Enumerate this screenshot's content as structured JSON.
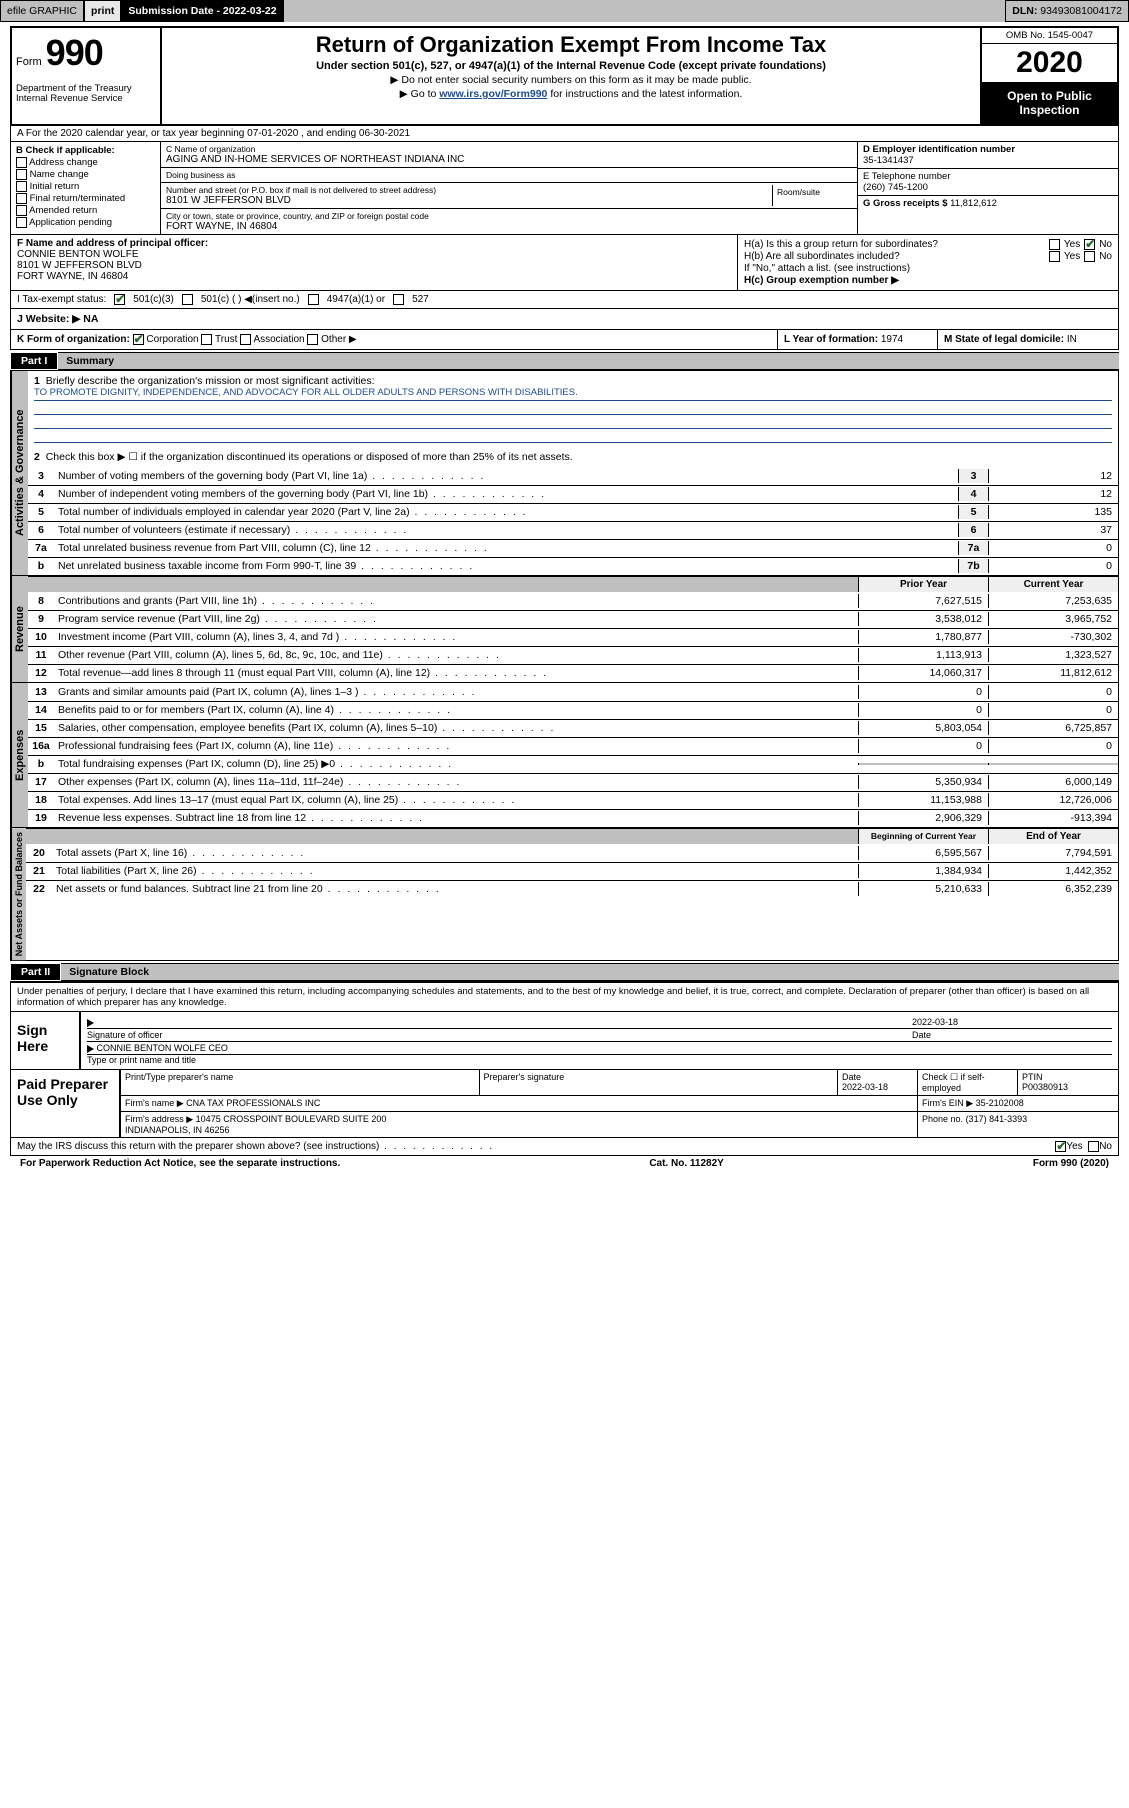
{
  "topbar": {
    "efile": "efile GRAPHIC",
    "print": "print",
    "subdate_lbl": "Submission Date -",
    "subdate": "2022-03-22",
    "dln_lbl": "DLN:",
    "dln": "93493081004172"
  },
  "header": {
    "form_word": "Form",
    "form_num": "990",
    "dept": "Department of the Treasury\nInternal Revenue Service",
    "title": "Return of Organization Exempt From Income Tax",
    "sub": "Under section 501(c), 527, or 4947(a)(1) of the Internal Revenue Code (except private foundations)",
    "note1": "▶ Do not enter social security numbers on this form as it may be made public.",
    "note2_pre": "▶ Go to ",
    "note2_link": "www.irs.gov/Form990",
    "note2_post": " for instructions and the latest information.",
    "omb": "OMB No. 1545-0047",
    "year": "2020",
    "otp": "Open to Public Inspection"
  },
  "rowA": "A For the 2020 calendar year, or tax year beginning 07-01-2020  , and ending 06-30-2021",
  "colB": {
    "title": "B Check if applicable:",
    "items": [
      "Address change",
      "Name change",
      "Initial return",
      "Final return/terminated",
      "Amended return",
      "Application pending"
    ]
  },
  "colC": {
    "name_lbl": "C Name of organization",
    "name": "AGING AND IN-HOME SERVICES OF NORTHEAST INDIANA INC",
    "dba_lbl": "Doing business as",
    "dba": "",
    "addr_lbl": "Number and street (or P.O. box if mail is not delivered to street address)",
    "addr": "8101 W JEFFERSON BLVD",
    "suite_lbl": "Room/suite",
    "city_lbl": "City or town, state or province, country, and ZIP or foreign postal code",
    "city": "FORT WAYNE, IN  46804"
  },
  "colD": {
    "ein_lbl": "D Employer identification number",
    "ein": "35-1341437",
    "tel_lbl": "E Telephone number",
    "tel": "(260) 745-1200",
    "gross_lbl": "G Gross receipts $",
    "gross": "11,812,612"
  },
  "rowF": {
    "lbl": "F Name and address of principal officer:",
    "name": "CONNIE BENTON WOLFE",
    "addr1": "8101 W JEFFERSON BLVD",
    "addr2": "FORT WAYNE, IN  46804"
  },
  "rowH": {
    "ha": "H(a)  Is this a group return for subordinates?",
    "hb": "H(b)  Are all subordinates included?",
    "hbnote": "If \"No,\" attach a list. (see instructions)",
    "hc": "H(c)  Group exemption number ▶",
    "yes": "Yes",
    "no": "No"
  },
  "tax": {
    "lbl": "I  Tax-exempt status:",
    "c3": "501(c)(3)",
    "c": "501(c) (  ) ◀(insert no.)",
    "a1": "4947(a)(1) or",
    "s527": "527"
  },
  "siteJ": {
    "lbl": "J  Website: ▶",
    "val": "NA"
  },
  "rowK": {
    "k": "K Form of organization:",
    "corp": "Corporation",
    "trust": "Trust",
    "assoc": "Association",
    "other": "Other ▶",
    "l_lbl": "L Year of formation:",
    "l_val": "1974",
    "m_lbl": "M State of legal domicile:",
    "m_val": "IN"
  },
  "part1": {
    "num": "Part I",
    "title": "Summary",
    "tab_gov": "Activities & Governance",
    "tab_rev": "Revenue",
    "tab_exp": "Expenses",
    "tab_net": "Net Assets or Fund Balances",
    "l1": "Briefly describe the organization's mission or most significant activities:",
    "l1val": "TO PROMOTE DIGNITY, INDEPENDENCE, AND ADVOCACY FOR ALL OLDER ADULTS AND PERSONS WITH DISABILITIES.",
    "l2": "Check this box ▶ ☐  if the organization discontinued its operations or disposed of more than 25% of its net assets.",
    "lines_gov": [
      {
        "n": "3",
        "d": "Number of voting members of the governing body (Part VI, line 1a)",
        "box": "3",
        "amt": "12"
      },
      {
        "n": "4",
        "d": "Number of independent voting members of the governing body (Part VI, line 1b)",
        "box": "4",
        "amt": "12"
      },
      {
        "n": "5",
        "d": "Total number of individuals employed in calendar year 2020 (Part V, line 2a)",
        "box": "5",
        "amt": "135"
      },
      {
        "n": "6",
        "d": "Total number of volunteers (estimate if necessary)",
        "box": "6",
        "amt": "37"
      },
      {
        "n": "7a",
        "d": "Total unrelated business revenue from Part VIII, column (C), line 12",
        "box": "7a",
        "amt": "0"
      },
      {
        "n": "b",
        "d": "Net unrelated business taxable income from Form 990-T, line 39",
        "box": "7b",
        "amt": "0"
      }
    ],
    "hdr_prior": "Prior Year",
    "hdr_curr": "Current Year",
    "lines_rev": [
      {
        "n": "8",
        "d": "Contributions and grants (Part VIII, line 1h)",
        "p": "7,627,515",
        "c": "7,253,635"
      },
      {
        "n": "9",
        "d": "Program service revenue (Part VIII, line 2g)",
        "p": "3,538,012",
        "c": "3,965,752"
      },
      {
        "n": "10",
        "d": "Investment income (Part VIII, column (A), lines 3, 4, and 7d )",
        "p": "1,780,877",
        "c": "-730,302"
      },
      {
        "n": "11",
        "d": "Other revenue (Part VIII, column (A), lines 5, 6d, 8c, 9c, 10c, and 11e)",
        "p": "1,113,913",
        "c": "1,323,527"
      },
      {
        "n": "12",
        "d": "Total revenue—add lines 8 through 11 (must equal Part VIII, column (A), line 12)",
        "p": "14,060,317",
        "c": "11,812,612"
      }
    ],
    "lines_exp": [
      {
        "n": "13",
        "d": "Grants and similar amounts paid (Part IX, column (A), lines 1–3 )",
        "p": "0",
        "c": "0"
      },
      {
        "n": "14",
        "d": "Benefits paid to or for members (Part IX, column (A), line 4)",
        "p": "0",
        "c": "0"
      },
      {
        "n": "15",
        "d": "Salaries, other compensation, employee benefits (Part IX, column (A), lines 5–10)",
        "p": "5,803,054",
        "c": "6,725,857"
      },
      {
        "n": "16a",
        "d": "Professional fundraising fees (Part IX, column (A), line 11e)",
        "p": "0",
        "c": "0"
      },
      {
        "n": "b",
        "d": "Total fundraising expenses (Part IX, column (D), line 25) ▶0",
        "p": "",
        "c": "",
        "gray": true
      },
      {
        "n": "17",
        "d": "Other expenses (Part IX, column (A), lines 11a–11d, 11f–24e)",
        "p": "5,350,934",
        "c": "6,000,149"
      },
      {
        "n": "18",
        "d": "Total expenses. Add lines 13–17 (must equal Part IX, column (A), line 25)",
        "p": "11,153,988",
        "c": "12,726,006"
      },
      {
        "n": "19",
        "d": "Revenue less expenses. Subtract line 18 from line 12",
        "p": "2,906,329",
        "c": "-913,394"
      }
    ],
    "hdr_beg": "Beginning of Current Year",
    "hdr_end": "End of Year",
    "lines_net": [
      {
        "n": "20",
        "d": "Total assets (Part X, line 16)",
        "p": "6,595,567",
        "c": "7,794,591"
      },
      {
        "n": "21",
        "d": "Total liabilities (Part X, line 26)",
        "p": "1,384,934",
        "c": "1,442,352"
      },
      {
        "n": "22",
        "d": "Net assets or fund balances. Subtract line 21 from line 20",
        "p": "5,210,633",
        "c": "6,352,239"
      }
    ]
  },
  "part2": {
    "num": "Part II",
    "title": "Signature Block",
    "penalty": "Under penalties of perjury, I declare that I have examined this return, including accompanying schedules and statements, and to the best of my knowledge and belief, it is true, correct, and complete. Declaration of preparer (other than officer) is based on all information of which preparer has any knowledge.",
    "sign_here": "Sign Here",
    "sig_of_officer": "Signature of officer",
    "sig_date_lbl": "Date",
    "sig_date": "2022-03-18",
    "officer_name": "CONNIE BENTON WOLFE CEO",
    "type_name": "Type or print name and title",
    "paid": "Paid Preparer Use Only",
    "prep_name_lbl": "Print/Type preparer's name",
    "prep_sig_lbl": "Preparer's signature",
    "prep_date_lbl": "Date",
    "prep_date": "2022-03-18",
    "prep_check": "Check ☐ if self-employed",
    "ptin_lbl": "PTIN",
    "ptin": "P00380913",
    "firm_name_lbl": "Firm's name    ▶",
    "firm_name": "CNA TAX PROFESSIONALS INC",
    "firm_ein_lbl": "Firm's EIN ▶",
    "firm_ein": "35-2102008",
    "firm_addr_lbl": "Firm's address ▶",
    "firm_addr": "10475 CROSSPOINT BOULEVARD SUITE 200\nINDIANAPOLIS, IN  46256",
    "firm_phone_lbl": "Phone no.",
    "firm_phone": "(317) 841-3393",
    "discuss": "May the IRS discuss this return with the preparer shown above? (see instructions)"
  },
  "footer": {
    "pra": "For Paperwork Reduction Act Notice, see the separate instructions.",
    "cat": "Cat. No. 11282Y",
    "form": "Form 990 (2020)"
  }
}
